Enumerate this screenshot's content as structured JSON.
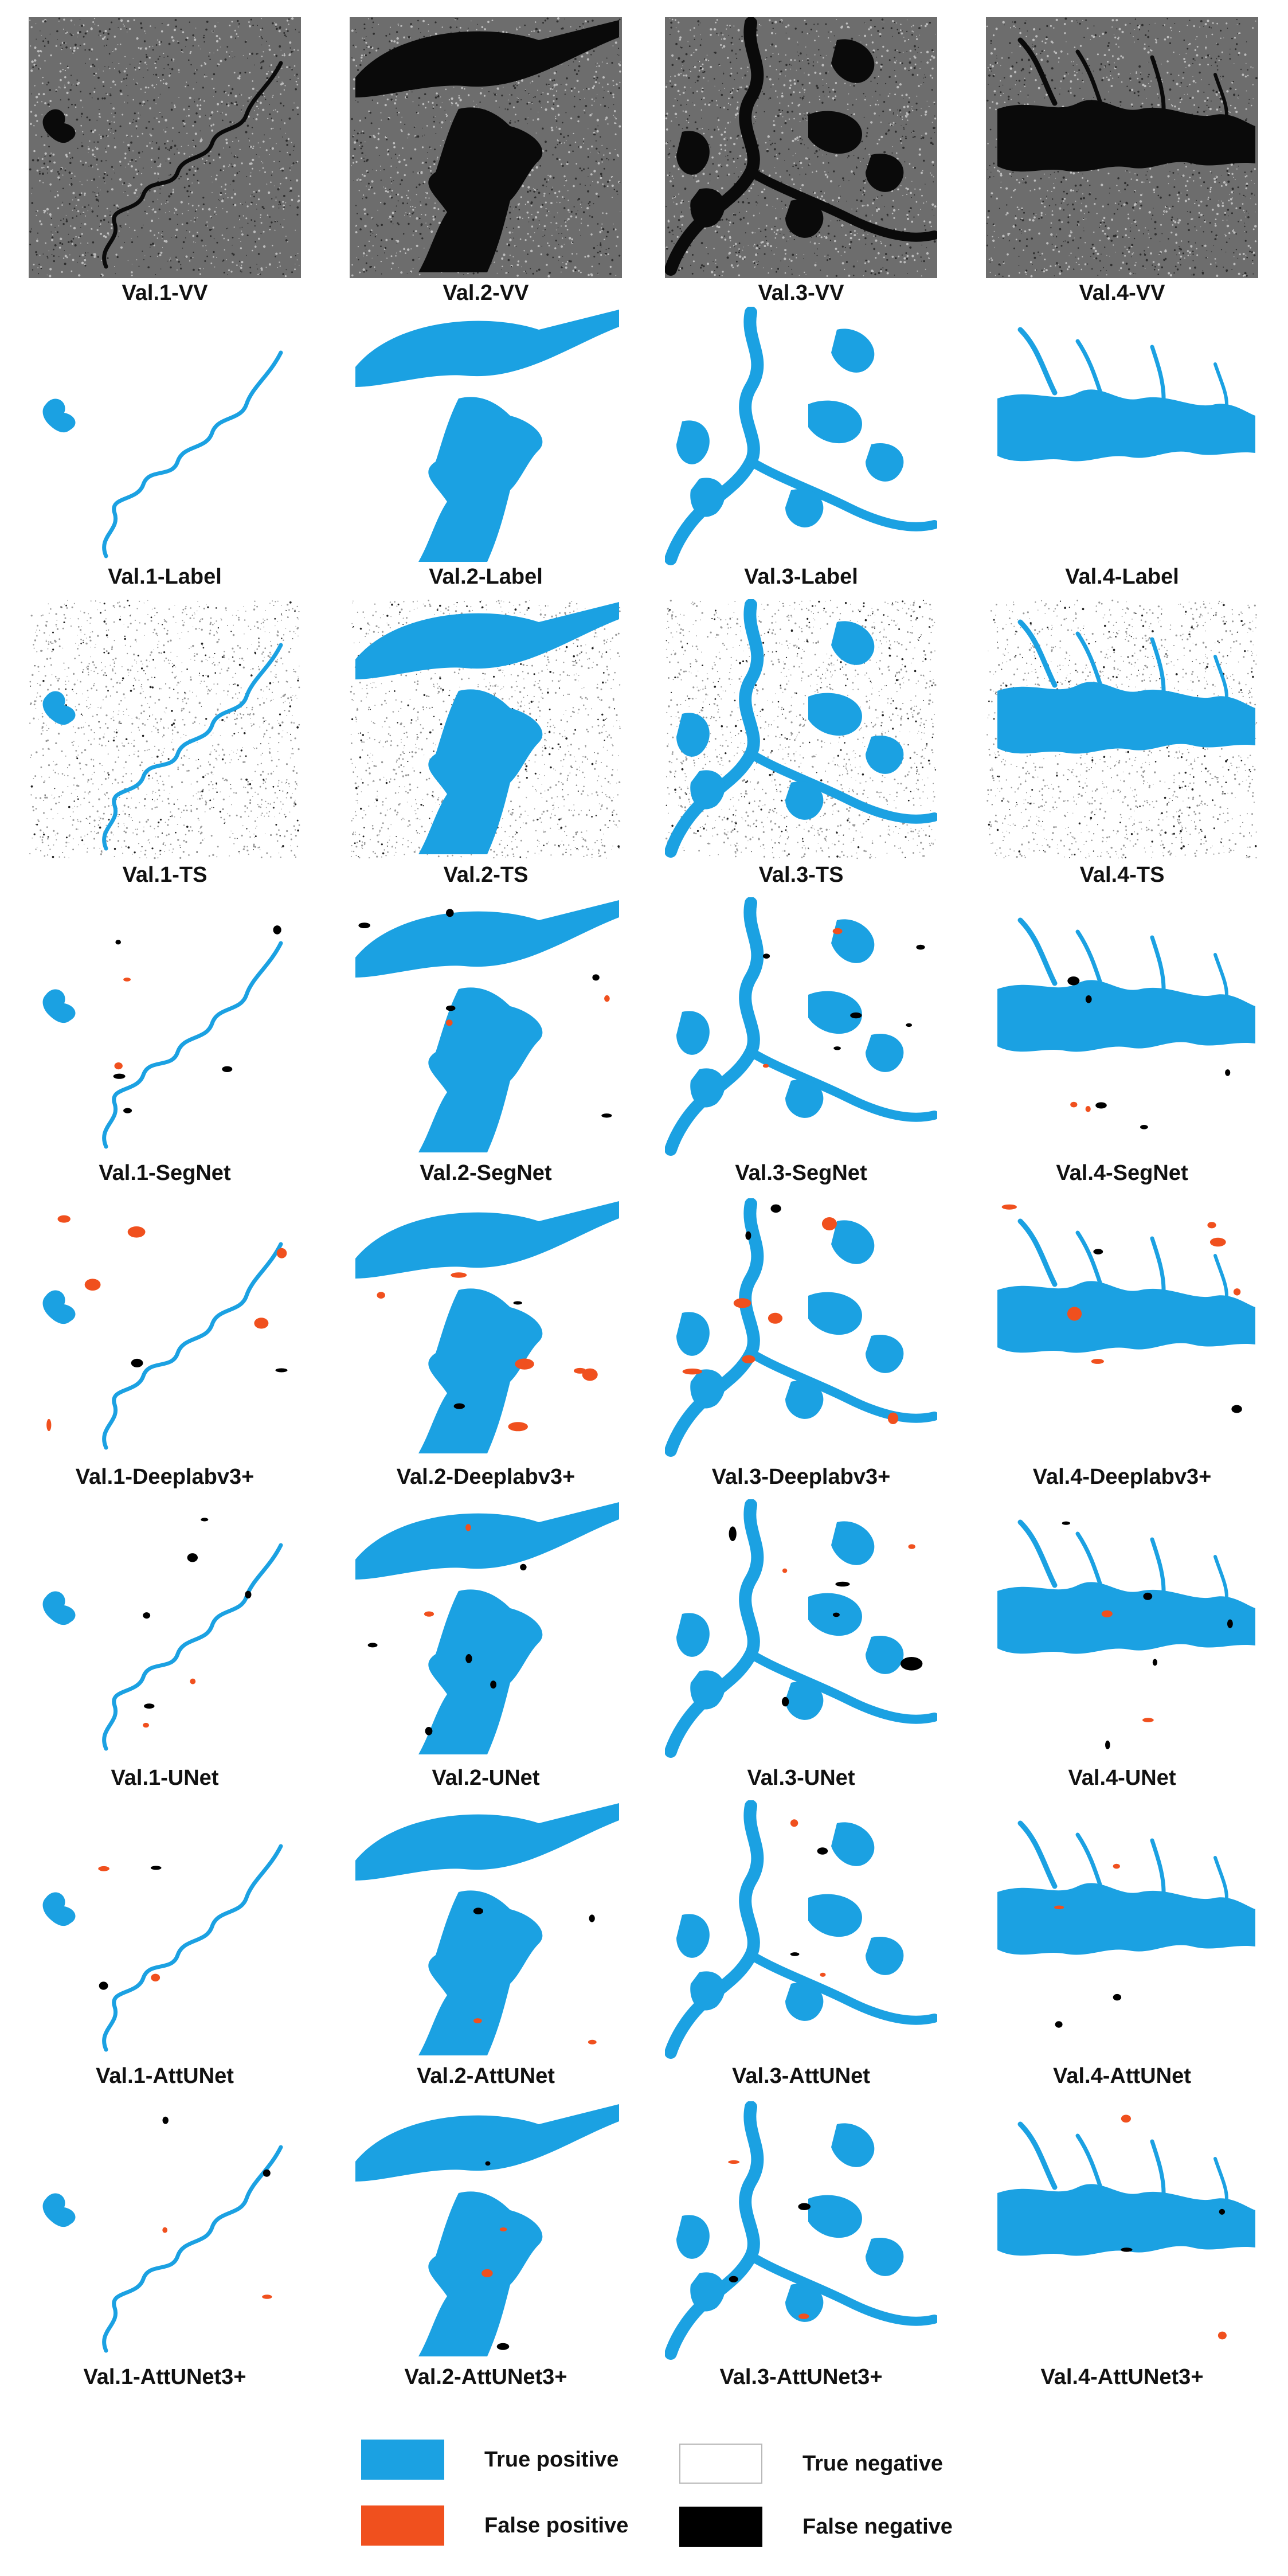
{
  "colors": {
    "true_positive": "#1ba1e2",
    "false_positive": "#f0501e",
    "true_negative": "#ffffff",
    "false_negative": "#000000",
    "sar_background": "#6d6d6d"
  },
  "rows": [
    {
      "kind": "sar",
      "labels": [
        "Val.1-VV",
        "Val.2-VV",
        "Val.3-VV",
        "Val.4-VV"
      ]
    },
    {
      "kind": "label",
      "labels": [
        "Val.1-Label",
        "Val.2-Label",
        "Val.3-Label",
        "Val.4-Label"
      ]
    },
    {
      "kind": "ts",
      "labels": [
        "Val.1-TS",
        "Val.2-TS",
        "Val.3-TS",
        "Val.4-TS"
      ]
    },
    {
      "kind": "segnet",
      "labels": [
        "Val.1-SegNet",
        "Val.2-SegNet",
        "Val.3-SegNet",
        "Val.4-SegNet"
      ]
    },
    {
      "kind": "deeplab",
      "labels": [
        "Val.1-Deeplabv3+",
        "Val.2-Deeplabv3+",
        "Val.3-Deeplabv3+",
        "Val.4-Deeplabv3+"
      ]
    },
    {
      "kind": "unet",
      "labels": [
        "Val.1-UNet",
        "Val.2-UNet",
        "Val.3-UNet",
        "Val.4-UNet"
      ]
    },
    {
      "kind": "attunet",
      "labels": [
        "Val.1-AttUNet",
        "Val.2-AttUNet",
        "Val.3-AttUNet",
        "Val.4-AttUNet"
      ]
    },
    {
      "kind": "attunet3",
      "labels": [
        "Val.1-AttUNet3+",
        "Val.2-AttUNet3+",
        "Val.3-AttUNet3+",
        "Val.4-AttUNet3+"
      ]
    }
  ],
  "legend": {
    "true_positive": "True positive",
    "false_positive": "False positive",
    "true_negative": "True negative",
    "false_negative": "False negative"
  }
}
